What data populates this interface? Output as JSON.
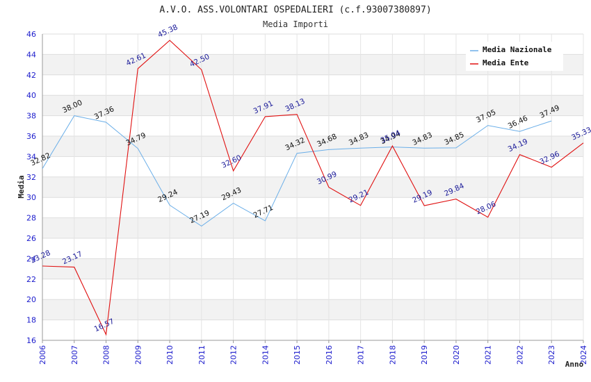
{
  "chart_data": {
    "type": "line",
    "title": "A.V.O. ASS.VOLONTARI OSPEDALIERI (c.f.93007380897)",
    "subtitle": "Media Importi",
    "xlabel": "Anno",
    "ylabel": "Media",
    "ylim": [
      16,
      46
    ],
    "ytick_step": 2,
    "grid": true,
    "legend_position": "top-right",
    "categories": [
      "2006",
      "2007",
      "2008",
      "2009",
      "2010",
      "2011",
      "2012",
      "2014",
      "2015",
      "2016",
      "2017",
      "2018",
      "2019",
      "2020",
      "2021",
      "2022",
      "2023",
      "2024"
    ],
    "series": [
      {
        "name": "Media Nazionale",
        "color": "#6aaee8",
        "label_color": "#111111",
        "values": [
          32.82,
          38.0,
          37.36,
          34.79,
          29.24,
          27.19,
          29.43,
          27.71,
          34.32,
          34.68,
          34.83,
          34.94,
          34.83,
          34.85,
          37.05,
          36.46,
          37.49,
          null
        ],
        "labels": [
          "32.82",
          "38.00",
          "37.36",
          "34.79",
          "29.24",
          "27.19",
          "29.43",
          "27.71",
          "34.32",
          "34.68",
          "34.83",
          "34.94",
          "34.83",
          "34.85",
          "37.05",
          "36.46",
          "37.49",
          ""
        ]
      },
      {
        "name": "Media Ente",
        "color": "#e01010",
        "label_color": "#1a1a99",
        "values": [
          23.28,
          23.17,
          16.57,
          42.61,
          45.38,
          42.5,
          32.6,
          37.91,
          38.13,
          30.99,
          29.21,
          35.04,
          29.19,
          29.84,
          28.06,
          34.19,
          32.96,
          35.33
        ],
        "labels": [
          "23.28",
          "23.17",
          "16.57",
          "42.61",
          "45.38",
          "42.50",
          "32.60",
          "37.91",
          "38.13",
          "30.99",
          "29.21",
          "35.04",
          "29.19",
          "29.84",
          "28.06",
          "34.19",
          "32.96",
          "35.33"
        ]
      }
    ]
  }
}
